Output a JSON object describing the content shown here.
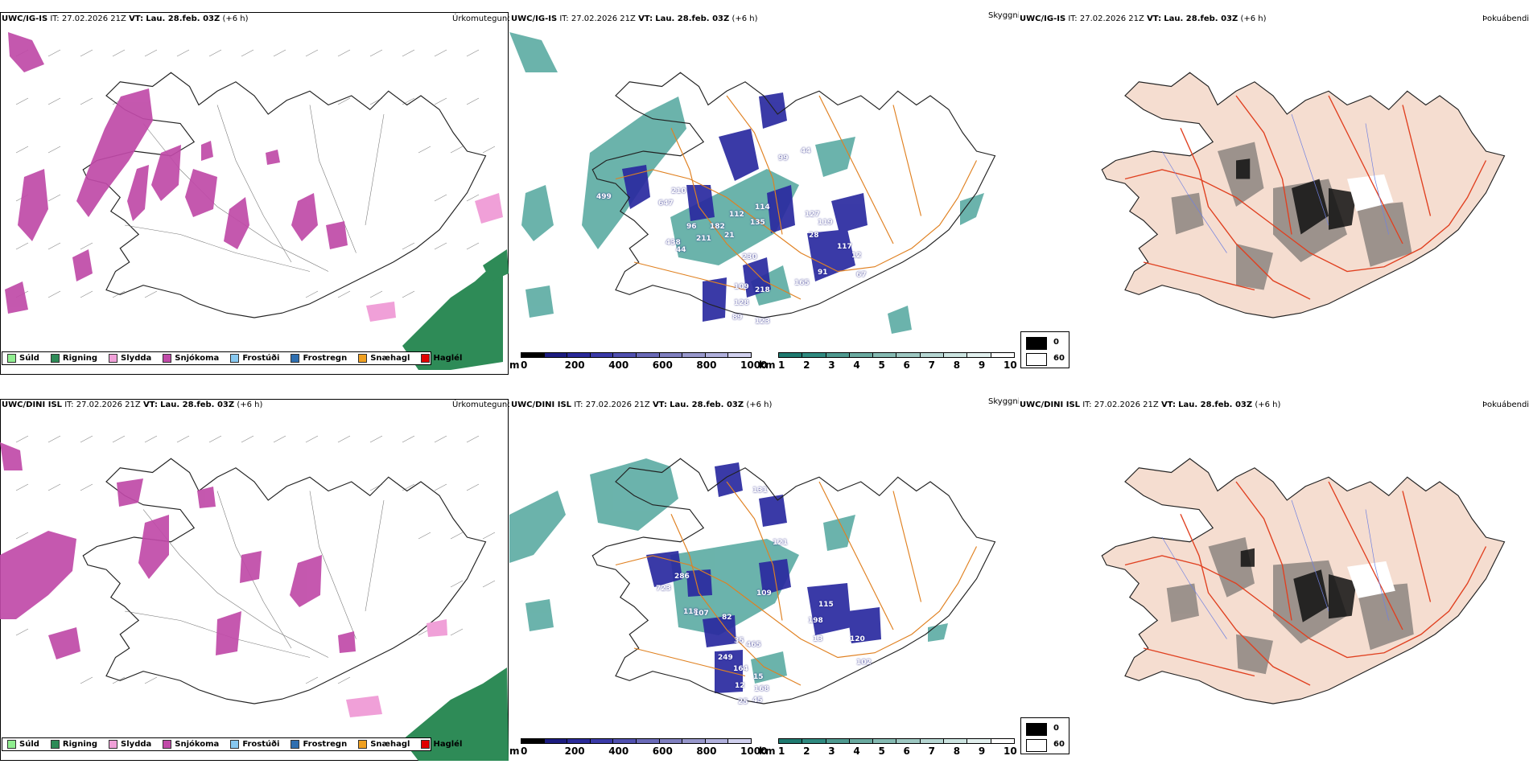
{
  "rows": [
    {
      "model": "UWC/IG-IS",
      "it_label": "IT:",
      "it_value": "27.02.2026 21Z",
      "vt_label": "VT:",
      "vt_value": "Lau. 28.feb. 03Z",
      "lead": "(+6 h)",
      "titles": {
        "precip": "Úrkomutegund",
        "cloud": "Skyggni",
        "fog": "Þokuábendi"
      },
      "cloud_numbers": [
        "99",
        "44",
        "210",
        "499",
        "647",
        "112",
        "114",
        "96",
        "182",
        "21",
        "135",
        "127",
        "119",
        "28",
        "438",
        "44",
        "211",
        "230",
        "117",
        "12",
        "91",
        "67",
        "109",
        "218",
        "165",
        "128",
        "123",
        "89"
      ]
    },
    {
      "model": "UWC/DINI ISL",
      "it_label": "IT:",
      "it_value": "27.02.2026 21Z",
      "vt_label": "VT:",
      "vt_value": "Lau. 28.feb. 03Z",
      "lead": "(+6 h)",
      "titles": {
        "precip": "Úrkomutegund",
        "cloud": "Skyggni",
        "fog": "Þokuábendi"
      },
      "cloud_numbers": [
        "131",
        "121",
        "286",
        "723",
        "109",
        "115",
        "118",
        "107",
        "82",
        "198",
        "13",
        "120",
        "35",
        "465",
        "102",
        "249",
        "164",
        "15",
        "12",
        "168",
        "25",
        "45"
      ]
    }
  ],
  "precip_legend": [
    {
      "label": "Súld",
      "color": "#90ee90"
    },
    {
      "label": "Rigning",
      "color": "#2e8b57"
    },
    {
      "label": "Slydda",
      "color": "#f0a0d8"
    },
    {
      "label": "Snjókoma",
      "color": "#c04aa8"
    },
    {
      "label": "Frostúði",
      "color": "#87c8f0"
    },
    {
      "label": "Frostregn",
      "color": "#2f6fb0"
    },
    {
      "label": "Snæhagl",
      "color": "#f0a020"
    },
    {
      "label": "Haglél",
      "color": "#e00000"
    }
  ],
  "cloudbase_bar": {
    "unit": "m",
    "ticks": [
      "0",
      "200",
      "400",
      "600",
      "800",
      "1000"
    ],
    "colors": [
      "#000000",
      "#1c1c80",
      "#2a2a9a",
      "#3a3aa8",
      "#5050b0",
      "#6a6ab8",
      "#8080c0",
      "#9898cc",
      "#b0b0dc",
      "#d0d0ee"
    ]
  },
  "visibility_bar": {
    "unit": "km",
    "ticks": [
      "1",
      "2",
      "3",
      "4",
      "5",
      "6",
      "7",
      "8",
      "9",
      "10"
    ],
    "colors": [
      "#1f7a70",
      "#2f8a80",
      "#4f9a90",
      "#6aaaa0",
      "#85bab2",
      "#9ec8c2",
      "#b6d6d2",
      "#cce4e0",
      "#e2f0ee",
      "#ffffff"
    ]
  },
  "fog_legend": {
    "values": [
      "0",
      "60"
    ]
  },
  "colors": {
    "snow": "#c04aa8",
    "rain": "#2e8b57",
    "sleet": "#f0a0d8",
    "teal": "#3a9a90",
    "cloud_blue": "#2a2aa0",
    "roads": "#e08020",
    "fog_land": "#f5ddd0",
    "fog_road": "#e04020"
  }
}
